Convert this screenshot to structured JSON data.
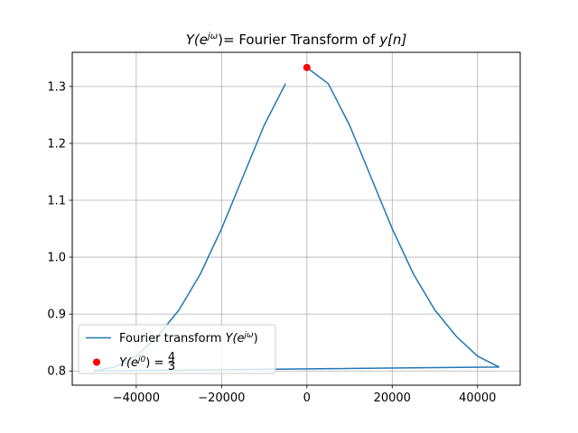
{
  "chart_data": {
    "type": "line",
    "title": {
      "lhs": "Y(e",
      "sup": "jω",
      "rhs": ")= ",
      "text": " Fourier Transform of ",
      "var": "y[n]"
    },
    "xlim": [
      -55000,
      50000
    ],
    "ylim": [
      0.775,
      1.36
    ],
    "xticks": [
      -40000,
      -20000,
      0,
      20000,
      40000
    ],
    "xtick_labels": [
      "−40000",
      "−20000",
      "0",
      "20000",
      "40000"
    ],
    "yticks": [
      0.8,
      0.9,
      1.0,
      1.1,
      1.2,
      1.3
    ],
    "ytick_labels": [
      "0.8",
      "0.9",
      "1.0",
      "1.1",
      "1.2",
      "1.3"
    ],
    "grid": true,
    "legend_position": "lower-left",
    "series": [
      {
        "name": "Fourier transform Y(e^jω)",
        "legend_text": "Fourier transform ",
        "legend_math": {
          "base": "Y(e",
          "sup": "jω",
          "tail": ")"
        },
        "color": "#1f77b4",
        "x": [
          0,
          5000,
          10000,
          15000,
          20000,
          25000,
          30000,
          35000,
          40000,
          45000,
          -50000,
          -45000,
          -40000,
          -35000,
          -30000,
          -25000,
          -20000,
          -15000,
          -10000,
          -5000
        ],
        "y": [
          1.333,
          1.305,
          1.232,
          1.141,
          1.05,
          0.97,
          0.907,
          0.861,
          0.826,
          0.807,
          0.8,
          0.807,
          0.826,
          0.861,
          0.907,
          0.97,
          1.05,
          1.141,
          1.232,
          1.305
        ]
      },
      {
        "name": "Y(e^j0) = 4/3",
        "legend_math": {
          "base": "Y(e",
          "sup": "j0",
          "tail": ")",
          "eq": " = ",
          "num": "4",
          "den": "3"
        },
        "color": "#ff0000",
        "marker": "circle",
        "x": [
          0
        ],
        "y": [
          1.3333
        ]
      }
    ]
  }
}
